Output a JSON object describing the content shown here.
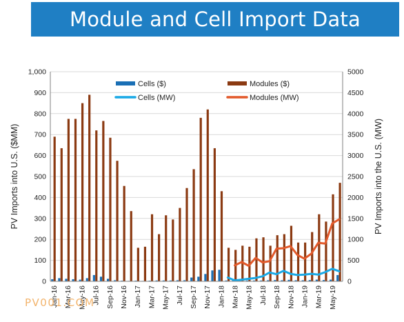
{
  "header": {
    "title": "Module and Cell Import Data"
  },
  "watermark": "PV001.COM",
  "colors": {
    "banner": "#1f7fc4",
    "cells_usd": "#1a6fb5",
    "modules_usd": "#8b3a12",
    "cells_mw": "#19a9e6",
    "modules_mw": "#e2592a"
  },
  "chart_data": {
    "type": "bar",
    "ylabel": "PV  Imports into U.S. ($MM)",
    "y2label": "PV Imports into the U.S. (MW)",
    "ylim": [
      0,
      1000
    ],
    "y2lim": [
      0,
      5000
    ],
    "yticks": [
      "0",
      "100",
      "200",
      "300",
      "400",
      "500",
      "600",
      "700",
      "800",
      "900",
      "1,000"
    ],
    "y2ticks": [
      "0",
      "500",
      "1000",
      "1500",
      "2000",
      "2500",
      "3000",
      "3500",
      "4000",
      "4500",
      "5000"
    ],
    "grid": true,
    "legend_position": "top-center",
    "x_tick_labels": [
      "Jan-16",
      "Mar-16",
      "May-16",
      "Jul-16",
      "Sep-16",
      "Nov-16",
      "Jan-17",
      "Mar-17",
      "May-17",
      "Jul-17",
      "Sep-17",
      "Nov-17",
      "Jan-18",
      "Mar-18",
      "May-18",
      "Jul-18",
      "Sep-18",
      "Nov-18",
      "Jan-19",
      "Mar-19",
      "May-19"
    ],
    "categories": [
      "Jan-16",
      "Feb-16",
      "Mar-16",
      "Apr-16",
      "May-16",
      "Jun-16",
      "Jul-16",
      "Aug-16",
      "Sep-16",
      "Oct-16",
      "Nov-16",
      "Dec-16",
      "Jan-17",
      "Feb-17",
      "Mar-17",
      "Apr-17",
      "May-17",
      "Jun-17",
      "Jul-17",
      "Aug-17",
      "Sep-17",
      "Oct-17",
      "Nov-17",
      "Dec-17",
      "Jan-18",
      "Feb-18",
      "Mar-18",
      "Apr-18",
      "May-18",
      "Jun-18",
      "Jul-18",
      "Aug-18",
      "Sep-18",
      "Oct-18",
      "Nov-18",
      "Dec-18",
      "Jan-19",
      "Feb-19",
      "Mar-19",
      "Apr-19",
      "May-19",
      "Jun-19"
    ],
    "series": [
      {
        "name": "Cells ($)",
        "kind": "bar",
        "axis": "left",
        "values": [
          10,
          15,
          12,
          10,
          8,
          15,
          30,
          22,
          12,
          5,
          3,
          2,
          3,
          2,
          3,
          4,
          4,
          4,
          5,
          5,
          18,
          22,
          35,
          52,
          55,
          4,
          4,
          3,
          4,
          4,
          4,
          5,
          6,
          5,
          7,
          5,
          5,
          6,
          8,
          6,
          8,
          30
        ]
      },
      {
        "name": "Modules ($)",
        "kind": "bar",
        "axis": "left",
        "values": [
          690,
          635,
          775,
          775,
          850,
          890,
          720,
          765,
          685,
          575,
          455,
          335,
          160,
          165,
          320,
          225,
          315,
          295,
          350,
          445,
          535,
          780,
          820,
          635,
          430,
          160,
          150,
          170,
          165,
          205,
          210,
          170,
          220,
          225,
          265,
          185,
          185,
          235,
          320,
          285,
          415,
          470
        ]
      },
      {
        "name": "Cells (MW)",
        "kind": "line",
        "axis": "right",
        "values": [
          null,
          null,
          null,
          null,
          null,
          null,
          null,
          null,
          null,
          null,
          null,
          null,
          null,
          null,
          null,
          null,
          null,
          null,
          null,
          null,
          null,
          null,
          null,
          null,
          null,
          90,
          20,
          40,
          60,
          80,
          120,
          210,
          170,
          250,
          180,
          150,
          160,
          180,
          160,
          220,
          300,
          240
        ]
      },
      {
        "name": "Modules (MW)",
        "kind": "line",
        "axis": "right",
        "values": [
          null,
          null,
          null,
          null,
          null,
          null,
          null,
          null,
          null,
          null,
          null,
          null,
          null,
          null,
          null,
          null,
          null,
          null,
          null,
          null,
          null,
          null,
          null,
          null,
          null,
          null,
          380,
          460,
          370,
          560,
          450,
          480,
          780,
          790,
          840,
          630,
          540,
          660,
          920,
          900,
          1380,
          1480
        ]
      }
    ]
  }
}
